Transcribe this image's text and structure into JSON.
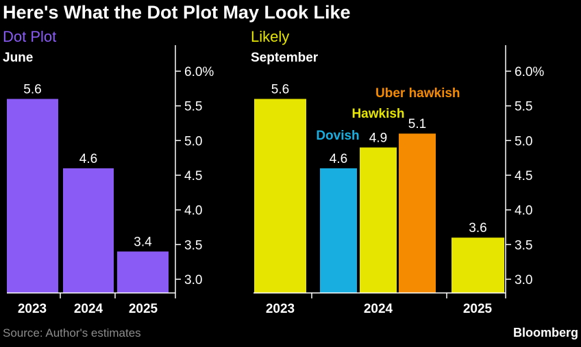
{
  "title": "Here's What the Dot Plot May Look Like",
  "source": "Source: Author's estimates",
  "brand": "Bloomberg",
  "colors": {
    "purple": "#8a5cf5",
    "yellow": "#e5e500",
    "blue": "#19aee0",
    "orange": "#f58b00",
    "background": "#000000",
    "axis": "#ffffff",
    "source_text": "#8c8c8c"
  },
  "chart_data": [
    {
      "type": "bar",
      "title": "Dot Plot",
      "subtitle": "June",
      "title_color": "#8a5cf5",
      "y_axis": {
        "side": "right",
        "ylim": [
          2.8,
          6.3
        ],
        "ticks": [
          "6.0%",
          "5.5",
          "5.0",
          "4.5",
          "4.0",
          "3.5",
          "3.0"
        ],
        "tick_values": [
          6.0,
          5.5,
          5.0,
          4.5,
          4.0,
          3.5,
          3.0
        ]
      },
      "categories": [
        "2023",
        "2024",
        "2025"
      ],
      "bars": [
        {
          "category": "2023",
          "value": 5.6,
          "label": "5.6",
          "color": "#8a5cf5"
        },
        {
          "category": "2024",
          "value": 4.6,
          "label": "4.6",
          "color": "#8a5cf5"
        },
        {
          "category": "2025",
          "value": 3.4,
          "label": "3.4",
          "color": "#8a5cf5"
        }
      ],
      "grid": false
    },
    {
      "type": "bar",
      "title": "Likely",
      "subtitle": "September",
      "title_color": "#e5e500",
      "y_axis": {
        "side": "right",
        "ylim": [
          2.8,
          6.3
        ],
        "ticks": [
          "6.0%",
          "5.5",
          "5.0",
          "4.5",
          "4.0",
          "3.5",
          "3.0"
        ],
        "tick_values": [
          6.0,
          5.5,
          5.0,
          4.5,
          4.0,
          3.5,
          3.0
        ]
      },
      "categories": [
        "2023",
        "2024",
        "2025"
      ],
      "bars": [
        {
          "category": "2023",
          "value": 5.6,
          "label": "5.6",
          "color": "#e5e500"
        },
        {
          "category": "2024",
          "value": 4.6,
          "label": "4.6",
          "color": "#19aee0",
          "annotation": "Dovish"
        },
        {
          "category": "2024",
          "value": 4.9,
          "label": "4.9",
          "color": "#e5e500",
          "annotation": "Hawkish"
        },
        {
          "category": "2024",
          "value": 5.1,
          "label": "5.1",
          "color": "#f58b00",
          "annotation": "Uber hawkish"
        },
        {
          "category": "2025",
          "value": 3.6,
          "label": "3.6",
          "color": "#e5e500"
        }
      ],
      "grid": false
    }
  ]
}
